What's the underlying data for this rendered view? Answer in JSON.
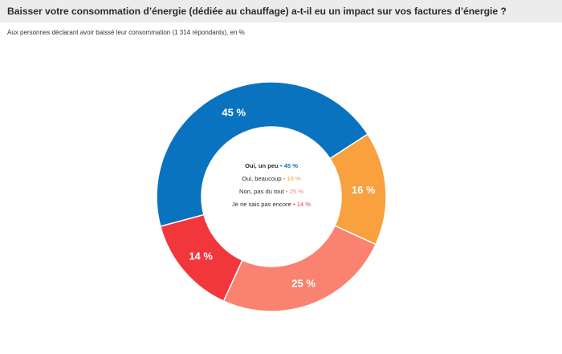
{
  "header": {
    "title": "Baisser votre consommation d’énergie (dédiée au chauffage) a-t-il eu un impact sur vos factures d’énergie ?",
    "subtitle": "Aux personnes déclarant avoir baissé leur consommation (1 314  répondants), en %"
  },
  "chart_data": {
    "type": "pie",
    "title": "Baisser votre consommation d’énergie (dédiée au chauffage) a-t-il eu un impact sur vos factures d’énergie ?",
    "subtitle": "Aux personnes déclarant avoir baissé leur consommation (1 314  répondants), en %",
    "donut": true,
    "unit": "%",
    "slices": [
      {
        "label": "Oui, un peu",
        "value": 45,
        "value_label": "45 %",
        "color": "#0a73bf"
      },
      {
        "label": "Oui, beaucoup",
        "value": 16,
        "value_label": "16 %",
        "color": "#f9a03f"
      },
      {
        "label": "Non, pas du tout",
        "value": 25,
        "value_label": "25 %",
        "color": "#fa8270"
      },
      {
        "label": "Je ne sais pas encore",
        "value": 14,
        "value_label": "14 %",
        "color": "#f1363c"
      }
    ]
  }
}
